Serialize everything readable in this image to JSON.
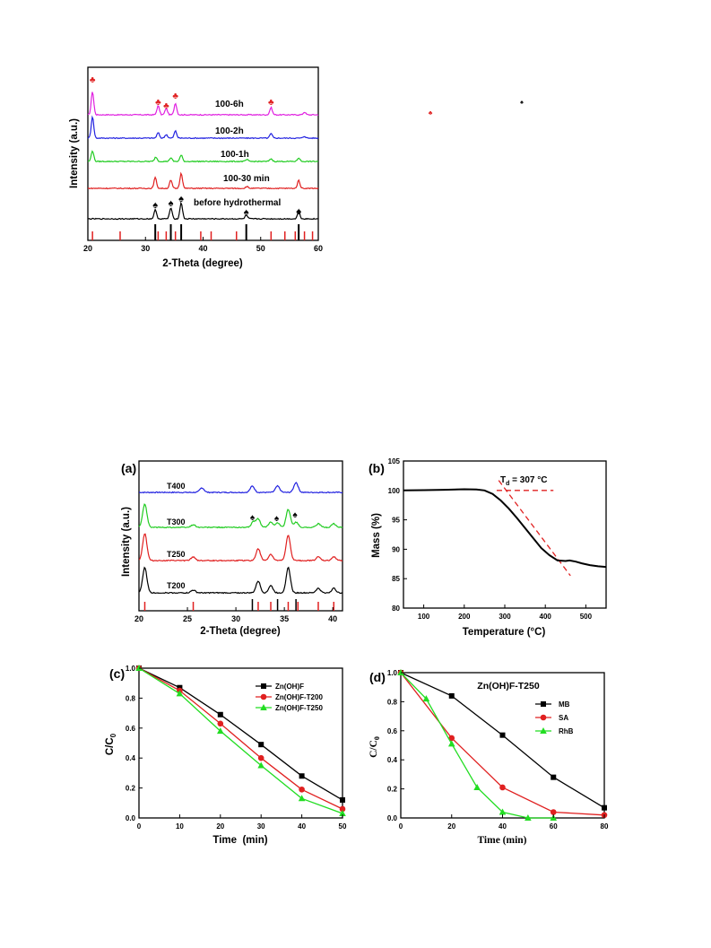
{
  "chart_data": [
    {
      "id": "top",
      "type": "line",
      "xlabel": "2-Theta (degree)",
      "ylabel": "Intensity (a.u.)",
      "xlim": [
        20,
        60
      ],
      "xticks": [
        20,
        30,
        40,
        50,
        60
      ],
      "series": [
        {
          "name": "100-6h",
          "color": "#e020e0",
          "peaks": [
            [
              20.8,
              26
            ],
            [
              32.2,
              10
            ],
            [
              33.6,
              7
            ],
            [
              35.2,
              13
            ],
            [
              51.8,
              8
            ],
            [
              57.6,
              3
            ]
          ]
        },
        {
          "name": "100-2h",
          "color": "#2222e0",
          "peaks": [
            [
              20.8,
              24
            ],
            [
              32.2,
              6
            ],
            [
              33.6,
              4
            ],
            [
              35.2,
              8
            ],
            [
              51.8,
              5
            ],
            [
              57.6,
              2
            ]
          ]
        },
        {
          "name": "100-1h",
          "color": "#22cc22",
          "peaks": [
            [
              20.8,
              12
            ],
            [
              31.8,
              5
            ],
            [
              34.4,
              4
            ],
            [
              36.2,
              7
            ],
            [
              47.6,
              2
            ],
            [
              51.8,
              3
            ],
            [
              56.6,
              4
            ]
          ]
        },
        {
          "name": "100-30 min",
          "color": "#e02020",
          "peaks": [
            [
              31.7,
              12
            ],
            [
              34.4,
              9
            ],
            [
              36.2,
              17
            ],
            [
              47.6,
              2
            ],
            [
              56.6,
              9
            ]
          ]
        },
        {
          "name": "before hydrothermal",
          "color": "#000000",
          "peaks": [
            [
              31.7,
              10
            ],
            [
              34.4,
              12
            ],
            [
              36.2,
              18
            ],
            [
              47.5,
              4
            ],
            [
              56.6,
              8
            ]
          ]
        }
      ],
      "ref_black": [
        31.7,
        34.4,
        36.2,
        47.5,
        56.6,
        62.8
      ],
      "ref_red": [
        20.8,
        25.6,
        32.2,
        33.6,
        35.2,
        39.6,
        41.4,
        45.8,
        51.8,
        54.2,
        56.0,
        57.6,
        59.0
      ],
      "marker_symbols": {
        "club": "♣",
        "spade": "♠"
      }
    },
    {
      "id": "a",
      "panel": "(a)",
      "type": "line",
      "xlabel": "2-Theta (degree)",
      "ylabel": "Intensity (a.u.)",
      "xlim": [
        20,
        41
      ],
      "xticks": [
        20,
        25,
        30,
        35,
        40
      ],
      "series": [
        {
          "name": "T400",
          "color": "#2222e0",
          "peaks": [
            [
              26.5,
              5
            ],
            [
              31.7,
              7
            ],
            [
              34.3,
              7
            ],
            [
              36.2,
              11
            ]
          ]
        },
        {
          "name": "T300",
          "color": "#22cc22",
          "peaks": [
            [
              20.6,
              26
            ],
            [
              25.6,
              3
            ],
            [
              31.8,
              6
            ],
            [
              32.3,
              9
            ],
            [
              33.6,
              6
            ],
            [
              34.3,
              5
            ],
            [
              35.4,
              20
            ],
            [
              36.2,
              6
            ],
            [
              38.5,
              4
            ],
            [
              40.1,
              4
            ]
          ]
        },
        {
          "name": "T250",
          "color": "#e02020",
          "peaks": [
            [
              20.6,
              30
            ],
            [
              25.6,
              4
            ],
            [
              32.3,
              13
            ],
            [
              33.6,
              7
            ],
            [
              35.4,
              28
            ],
            [
              38.5,
              4
            ],
            [
              40.1,
              4
            ]
          ]
        },
        {
          "name": "T200",
          "color": "#000000",
          "peaks": [
            [
              20.6,
              28
            ],
            [
              25.6,
              3
            ],
            [
              32.3,
              13
            ],
            [
              33.6,
              8
            ],
            [
              35.4,
              28
            ],
            [
              38.5,
              5
            ],
            [
              40.1,
              5
            ]
          ]
        }
      ],
      "ref_red": [
        20.6,
        25.6,
        32.3,
        33.6,
        35.4,
        36.4,
        38.5,
        40.1
      ],
      "ref_black": [
        31.7,
        34.3,
        36.2
      ],
      "marker_symbols": {
        "spade": "♠"
      }
    },
    {
      "id": "b",
      "panel": "(b)",
      "type": "line",
      "xlabel": "Temperature (°C)",
      "ylabel": "Mass (%)",
      "xlim": [
        50,
        550
      ],
      "ylim": [
        80,
        105
      ],
      "xticks": [
        100,
        200,
        300,
        400,
        500
      ],
      "yticks": [
        80,
        85,
        90,
        95,
        100,
        105
      ],
      "annotation": {
        "label": "T",
        "sub": "d",
        "text": " = 307 °C"
      },
      "series": [
        {
          "name": "",
          "color": "#000000",
          "x": [
            50,
            100,
            150,
            200,
            230,
            250,
            270,
            290,
            310,
            330,
            350,
            370,
            390,
            410,
            430,
            450,
            460,
            475,
            490,
            510,
            530,
            550
          ],
          "y": [
            100.0,
            100.05,
            100.1,
            100.2,
            100.15,
            100.0,
            99.4,
            98.3,
            96.9,
            95.3,
            93.6,
            91.9,
            90.2,
            89.0,
            88.1,
            88.0,
            88.1,
            87.9,
            87.6,
            87.3,
            87.1,
            87.0
          ]
        }
      ],
      "tangents": [
        {
          "x": [
            280,
            420
          ],
          "y": [
            100,
            100
          ]
        },
        {
          "x": [
            285,
            462
          ],
          "y": [
            101.7,
            85.5
          ]
        }
      ]
    },
    {
      "id": "c",
      "panel": "(c)",
      "type": "line",
      "xlabel": "Time  (min)",
      "ylabel": "C/C",
      "ylabel_sub": "0",
      "xlim": [
        0,
        50
      ],
      "ylim": [
        0,
        1.0
      ],
      "xticks": [
        0,
        10,
        20,
        30,
        40,
        50
      ],
      "yticks": [
        0.0,
        0.2,
        0.4,
        0.6,
        0.8,
        1.0
      ],
      "x": [
        0,
        10,
        20,
        30,
        40,
        50
      ],
      "series": [
        {
          "name": "Zn(OH)F",
          "color": "#000000",
          "marker": "square",
          "values": [
            1.0,
            0.87,
            0.69,
            0.49,
            0.28,
            0.12
          ]
        },
        {
          "name": "Zn(OH)F-T200",
          "color": "#e02020",
          "marker": "circle",
          "values": [
            1.0,
            0.85,
            0.63,
            0.4,
            0.19,
            0.06
          ]
        },
        {
          "name": "Zn(OH)F-T250",
          "color": "#22dd22",
          "marker": "triangle",
          "values": [
            1.0,
            0.83,
            0.58,
            0.35,
            0.13,
            0.03
          ]
        }
      ]
    },
    {
      "id": "d",
      "panel": "(d)",
      "title": "Zn(OH)F-T250",
      "type": "line",
      "xlabel": "Time (min)",
      "ylabel": "C/C",
      "ylabel_sub": "0",
      "xlim": [
        0,
        80
      ],
      "ylim": [
        0,
        1.0
      ],
      "xticks": [
        0,
        20,
        40,
        60,
        80
      ],
      "yticks": [
        0.0,
        0.2,
        0.4,
        0.6,
        0.8,
        1.0
      ],
      "series": [
        {
          "name": "MB",
          "color": "#000000",
          "marker": "square",
          "x": [
            0,
            20,
            40,
            60,
            80
          ],
          "values": [
            1.0,
            0.84,
            0.57,
            0.28,
            0.07
          ]
        },
        {
          "name": "SA",
          "color": "#e02020",
          "marker": "circle",
          "x": [
            0,
            20,
            40,
            60,
            80
          ],
          "values": [
            1.0,
            0.55,
            0.21,
            0.04,
            0.02
          ]
        },
        {
          "name": "RhB",
          "color": "#22dd22",
          "marker": "triangle",
          "x": [
            0,
            10,
            20,
            30,
            40,
            50,
            60
          ],
          "values": [
            1.0,
            0.82,
            0.51,
            0.21,
            0.04,
            0.0,
            0.0
          ]
        }
      ]
    }
  ],
  "stray_marks": [
    {
      "symbol": "♣",
      "color": "#e02020"
    },
    {
      "symbol": "♠",
      "color": "#000000"
    }
  ]
}
